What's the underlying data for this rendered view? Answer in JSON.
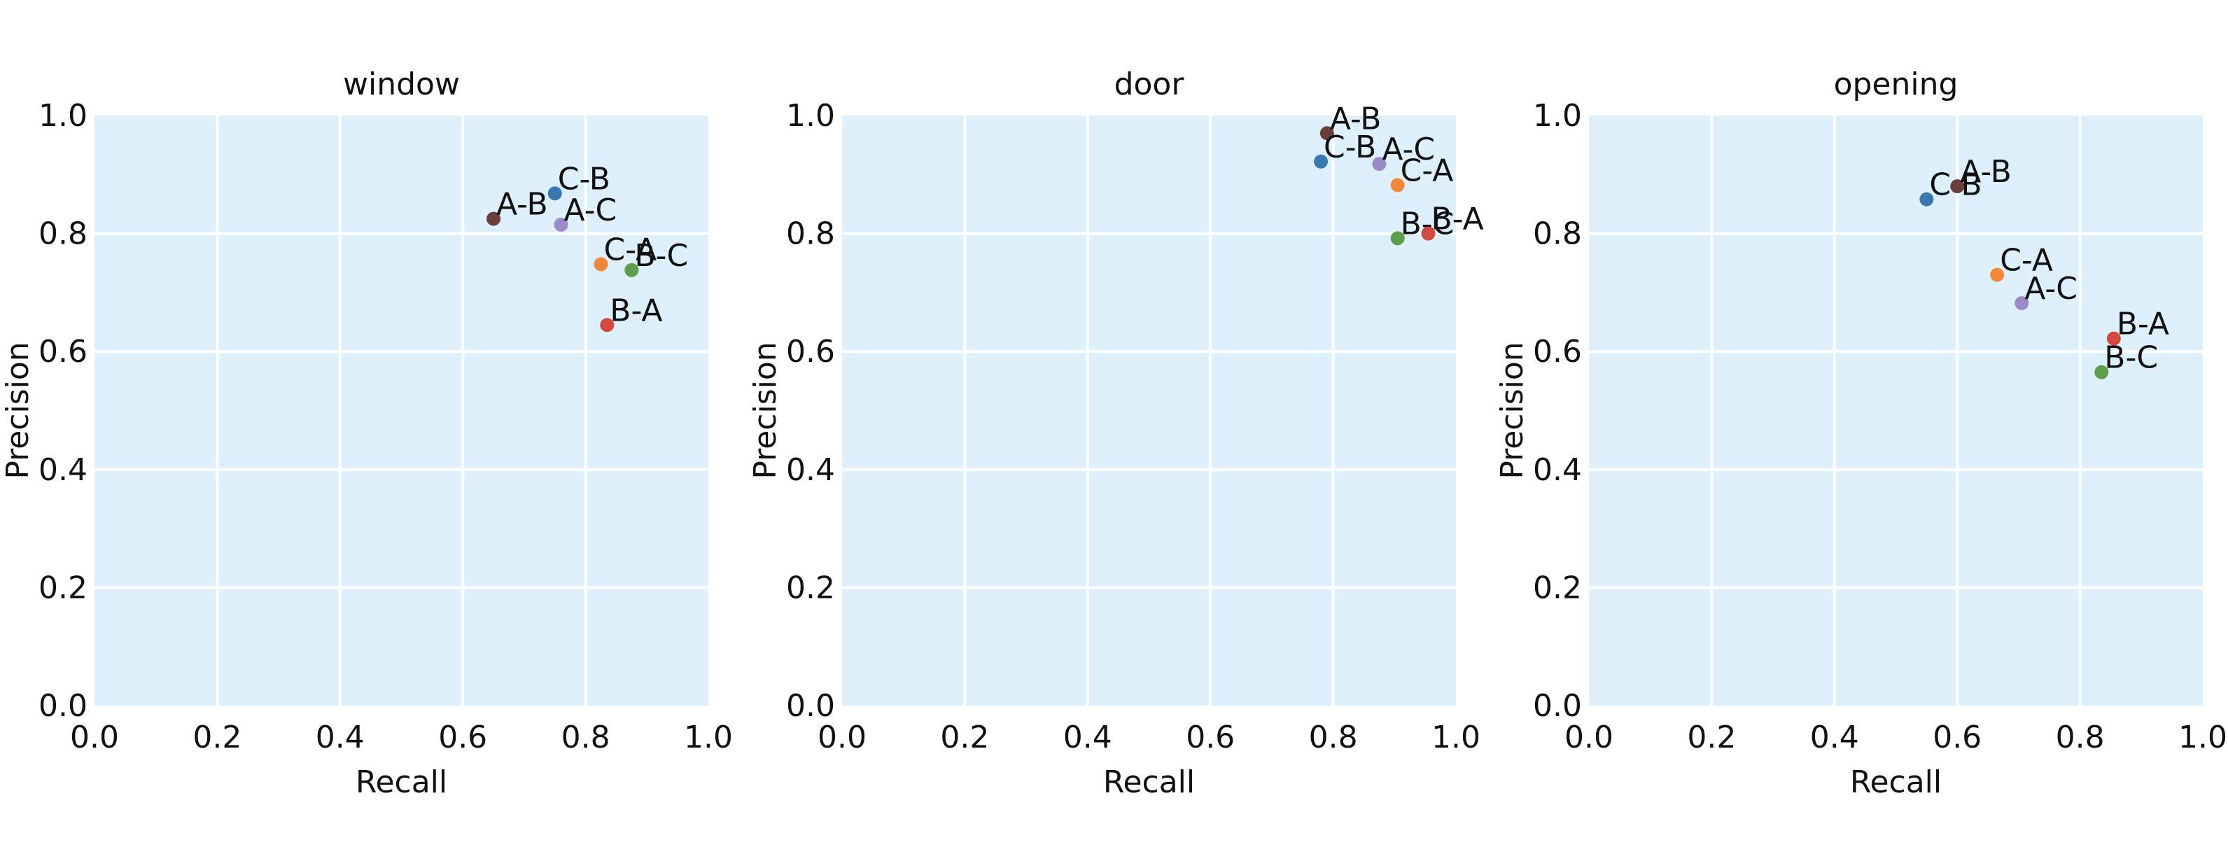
{
  "chart_data": [
    {
      "type": "scatter",
      "title": "window",
      "xlabel": "Recall",
      "ylabel": "Precision",
      "xlim": [
        0.0,
        1.0
      ],
      "ylim": [
        0.0,
        1.0
      ],
      "xticks": [
        "0.0",
        "0.2",
        "0.4",
        "0.6",
        "0.8",
        "1.0"
      ],
      "yticks": [
        "0.0",
        "0.2",
        "0.4",
        "0.6",
        "0.8",
        "1.0"
      ],
      "grid": true,
      "points": [
        {
          "label": "A-B",
          "x": 0.65,
          "y": 0.825,
          "color": "#6b3e3e"
        },
        {
          "label": "C-B",
          "x": 0.75,
          "y": 0.868,
          "color": "#3a78b2"
        },
        {
          "label": "A-C",
          "x": 0.76,
          "y": 0.815,
          "color": "#9b8bc8"
        },
        {
          "label": "C-A",
          "x": 0.825,
          "y": 0.748,
          "color": "#f0883a"
        },
        {
          "label": "B-C",
          "x": 0.875,
          "y": 0.738,
          "color": "#5e9e4a"
        },
        {
          "label": "B-A",
          "x": 0.835,
          "y": 0.645,
          "color": "#d24b40"
        }
      ]
    },
    {
      "type": "scatter",
      "title": "door",
      "xlabel": "Recall",
      "ylabel": "Precision",
      "xlim": [
        0.0,
        1.0
      ],
      "ylim": [
        0.0,
        1.0
      ],
      "xticks": [
        "0.0",
        "0.2",
        "0.4",
        "0.6",
        "0.8",
        "1.0"
      ],
      "yticks": [
        "0.0",
        "0.2",
        "0.4",
        "0.6",
        "0.8",
        "1.0"
      ],
      "grid": true,
      "points": [
        {
          "label": "A-B",
          "x": 0.79,
          "y": 0.97,
          "color": "#6b3e3e"
        },
        {
          "label": "C-B",
          "x": 0.78,
          "y": 0.922,
          "color": "#3a78b2"
        },
        {
          "label": "A-C",
          "x": 0.875,
          "y": 0.918,
          "color": "#9b8bc8"
        },
        {
          "label": "C-A",
          "x": 0.905,
          "y": 0.882,
          "color": "#f0883a"
        },
        {
          "label": "B-C",
          "x": 0.905,
          "y": 0.792,
          "color": "#5e9e4a"
        },
        {
          "label": "B-A",
          "x": 0.955,
          "y": 0.8,
          "color": "#d24b40"
        }
      ]
    },
    {
      "type": "scatter",
      "title": "opening",
      "xlabel": "Recall",
      "ylabel": "Precision",
      "xlim": [
        0.0,
        1.0
      ],
      "ylim": [
        0.0,
        1.0
      ],
      "xticks": [
        "0.0",
        "0.2",
        "0.4",
        "0.6",
        "0.8",
        "1.0"
      ],
      "yticks": [
        "0.0",
        "0.2",
        "0.4",
        "0.6",
        "0.8",
        "1.0"
      ],
      "grid": true,
      "points": [
        {
          "label": "C-B",
          "x": 0.55,
          "y": 0.858,
          "color": "#3a78b2"
        },
        {
          "label": "A-B",
          "x": 0.6,
          "y": 0.88,
          "color": "#6b3e3e"
        },
        {
          "label": "C-A",
          "x": 0.665,
          "y": 0.73,
          "color": "#f0883a"
        },
        {
          "label": "A-C",
          "x": 0.705,
          "y": 0.682,
          "color": "#9b8bc8"
        },
        {
          "label": "B-A",
          "x": 0.855,
          "y": 0.622,
          "color": "#d24b40"
        },
        {
          "label": "B-C",
          "x": 0.835,
          "y": 0.565,
          "color": "#5e9e4a"
        }
      ]
    }
  ]
}
